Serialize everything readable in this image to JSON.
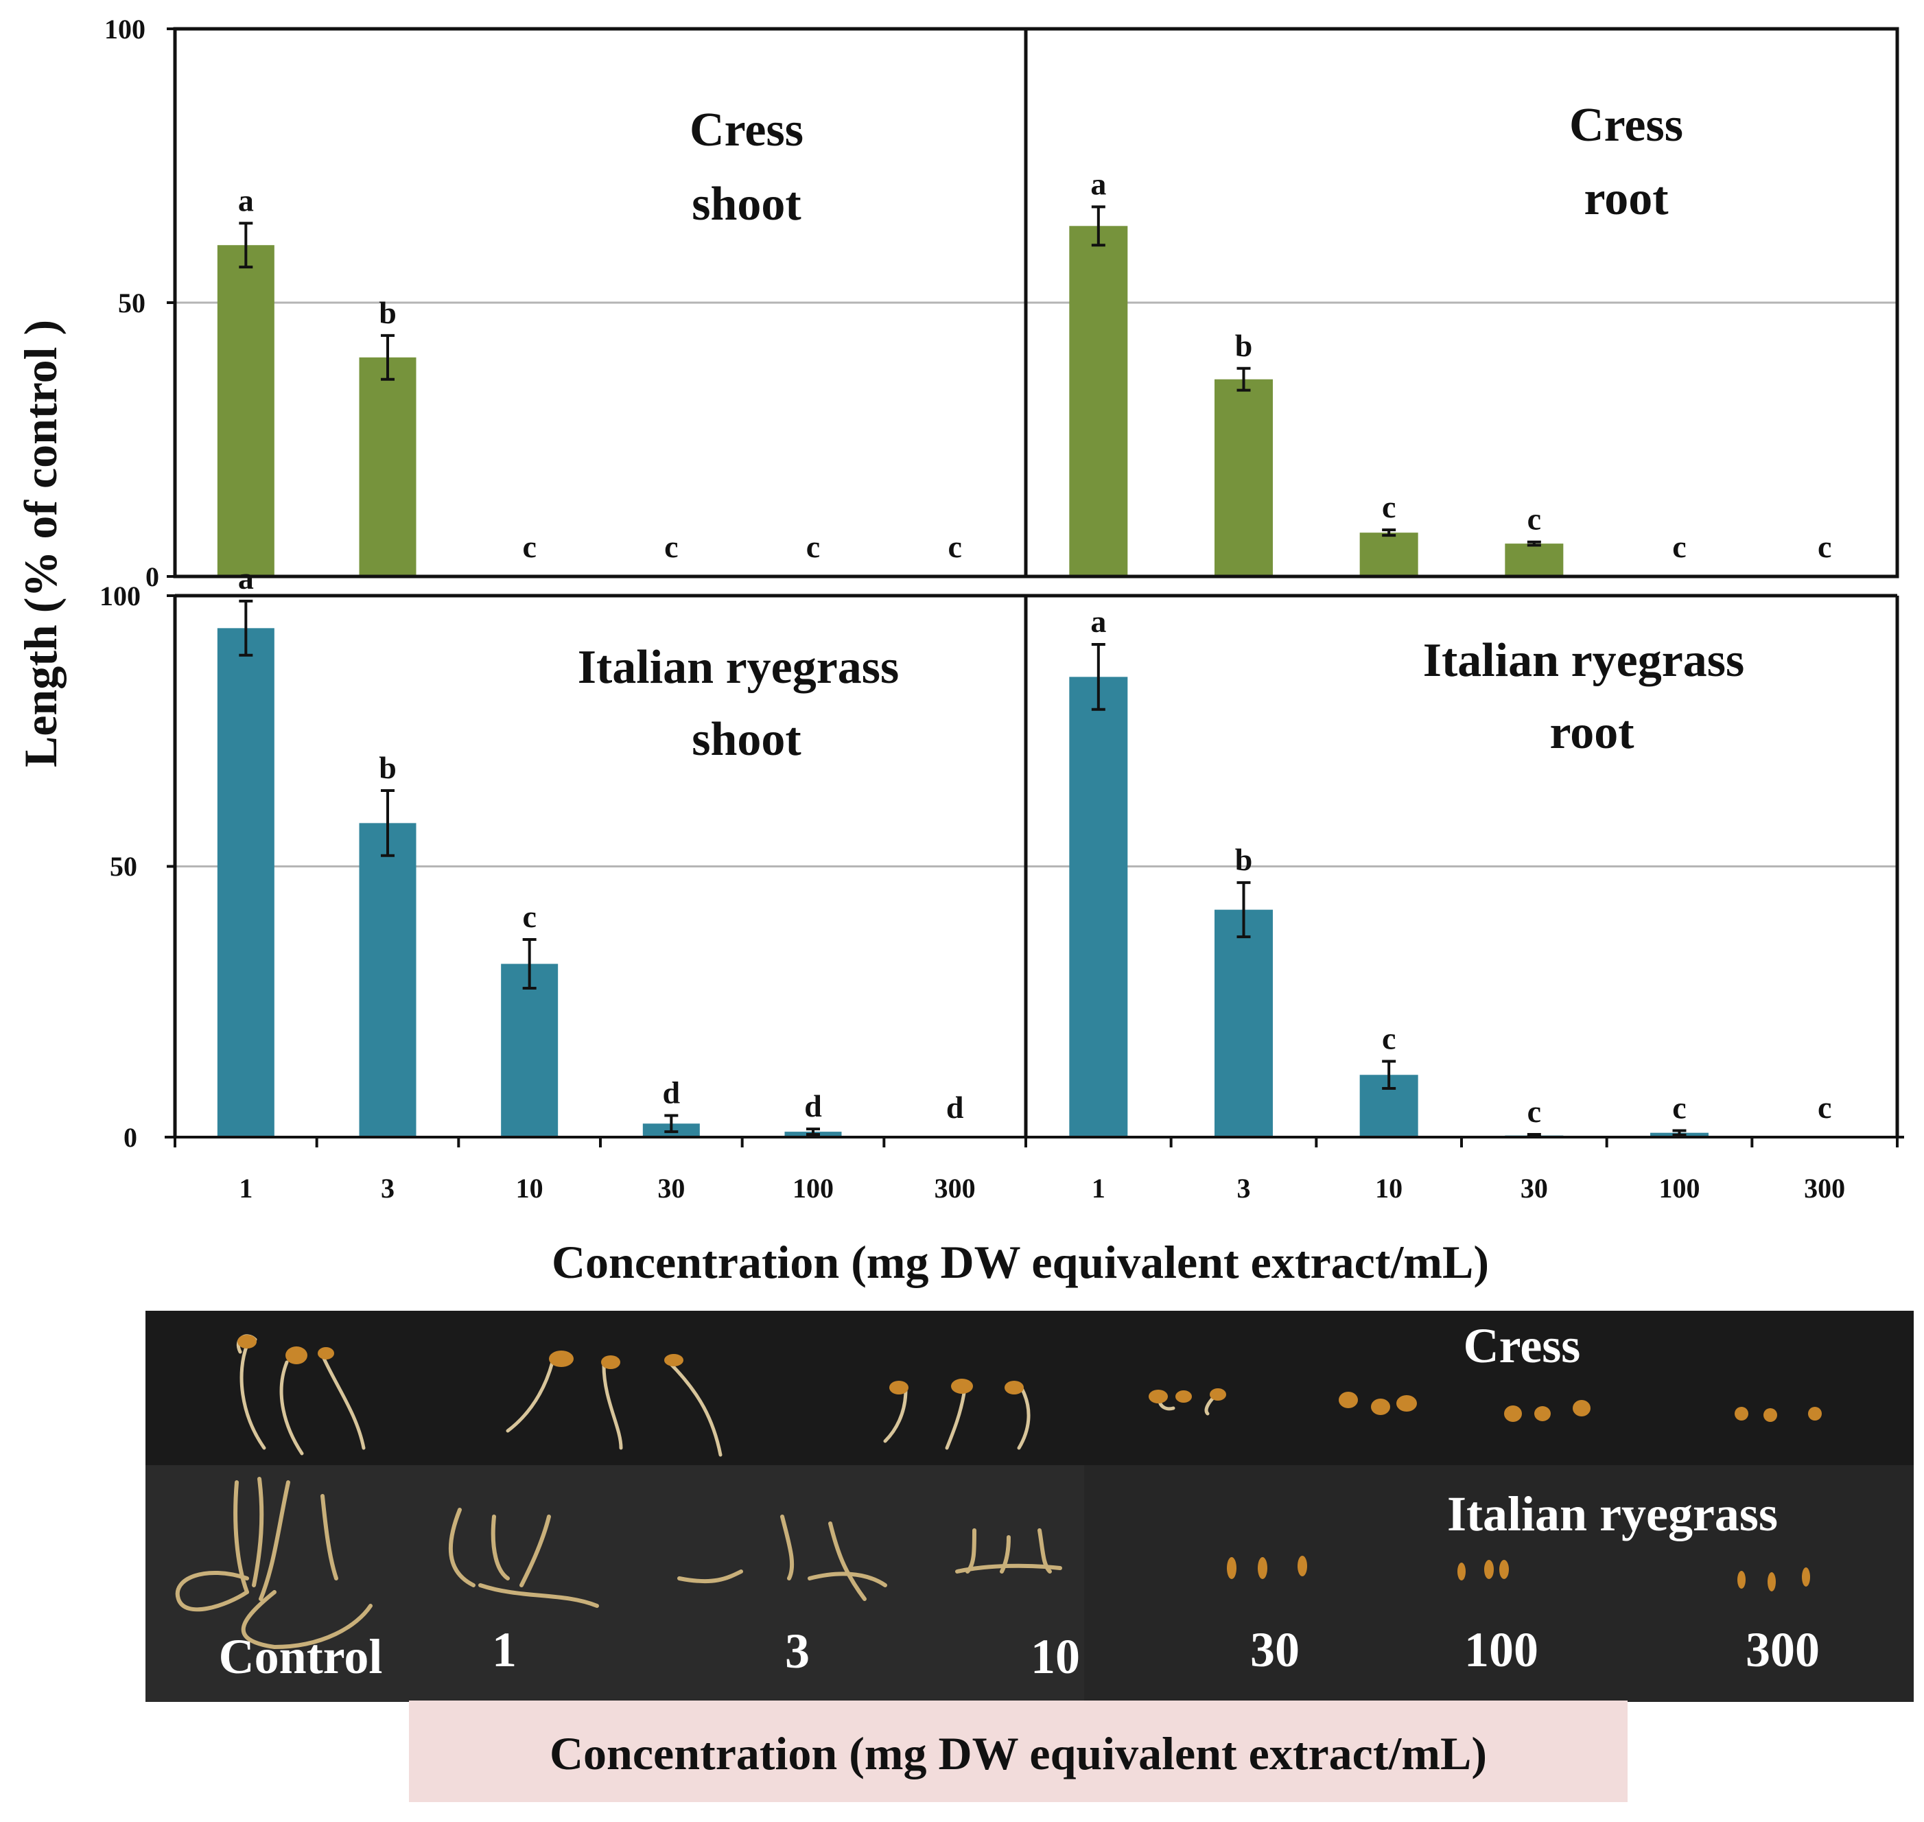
{
  "chart_data": {
    "type": "bar",
    "ylabel": "Length (% of control )",
    "xlabel": "Concentration (mg DW equivalent extract/mL)",
    "categories": [
      "1",
      "3",
      "10",
      "30",
      "100",
      "300"
    ],
    "ylim": [
      0,
      100
    ],
    "yticks": [
      "0",
      "50",
      "100"
    ],
    "grid": "horizontal line at 50",
    "panels": [
      {
        "title_line1": "Cress",
        "title_line2": "shoot",
        "color": "#76933c",
        "values": [
          60.5,
          40,
          0,
          0,
          0,
          0
        ],
        "errors": [
          4,
          4,
          0,
          0,
          0,
          0
        ],
        "letters": [
          "a",
          "b",
          "c",
          "c",
          "c",
          "c"
        ]
      },
      {
        "title_line1": "Cress",
        "title_line2": "root",
        "color": "#76933c",
        "values": [
          64,
          36,
          8,
          6,
          0,
          0
        ],
        "errors": [
          3.5,
          2,
          0.5,
          0.3,
          0,
          0
        ],
        "letters": [
          "a",
          "b",
          "c",
          "c",
          "c",
          "c"
        ]
      },
      {
        "title_line1": "Italian ryegrass",
        "title_line2": "shoot",
        "color": "#31849b",
        "values": [
          94,
          58,
          32,
          2.5,
          1,
          0
        ],
        "errors": [
          5,
          6,
          4.5,
          1.5,
          0.5,
          0
        ],
        "letters": [
          "a",
          "b",
          "c",
          "d",
          "d",
          "d"
        ]
      },
      {
        "title_line1": "Italian ryegrass",
        "title_line2": "root",
        "color": "#31849b",
        "values": [
          85,
          42,
          11.5,
          0.3,
          0.8,
          0
        ],
        "errors": [
          6,
          5,
          2.5,
          0.2,
          0.4,
          0
        ],
        "letters": [
          "a",
          "b",
          "c",
          "c",
          "c",
          "c"
        ]
      }
    ]
  },
  "photo": {
    "row1_label": "Cress",
    "row2_label": "Italian ryegrass",
    "labels": [
      "Control",
      "1",
      "3",
      "10",
      "30",
      "100",
      "300"
    ],
    "caption": "Concentration (mg DW equivalent extract/mL)",
    "caption_bg": "#f2dcdb"
  }
}
